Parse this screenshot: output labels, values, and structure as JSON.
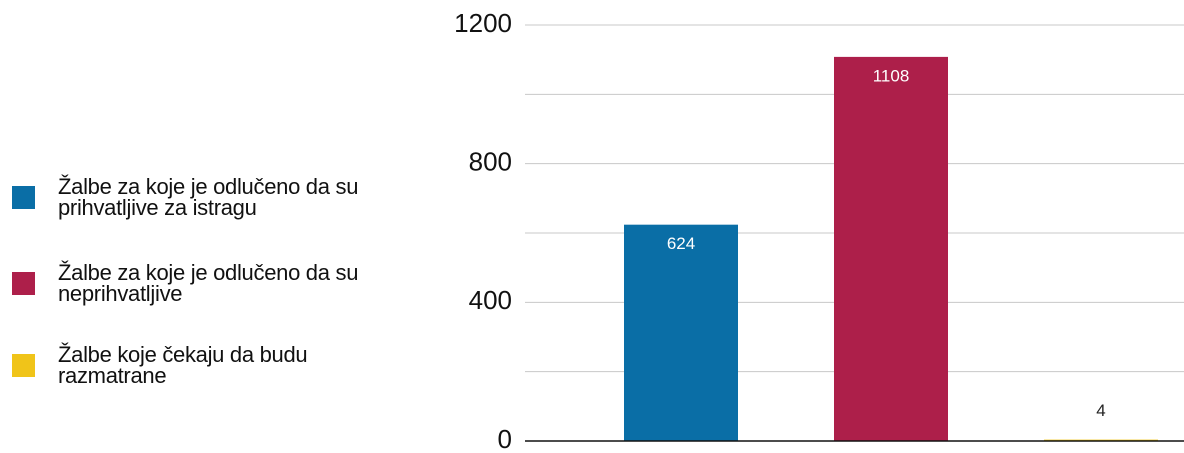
{
  "chart_data": {
    "type": "bar",
    "categories": [
      null
    ],
    "series": [
      {
        "name": "Žalbe za koje je odlučeno da su prihvatljive za istragu",
        "color": "#0a6ea6",
        "values": [
          624
        ]
      },
      {
        "name": "Žalbe za koje je odlučeno da su neprihvatljive",
        "color": "#ad1f4a",
        "values": [
          1108
        ]
      },
      {
        "name": "Žalbe koje čekaju da budu razmatrane",
        "color": "#f0c419",
        "values": [
          4
        ]
      }
    ],
    "ylim": [
      0,
      1200
    ],
    "yticks": [
      0,
      400,
      800,
      1200
    ],
    "minor_yticks": [
      200,
      600,
      1000
    ],
    "grid": true,
    "legend": "left"
  }
}
